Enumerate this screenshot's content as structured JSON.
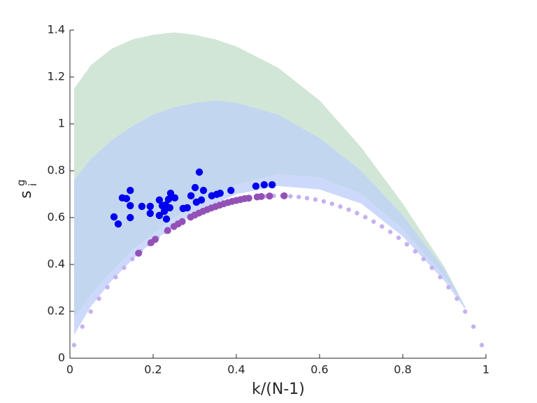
{
  "chart_data": {
    "type": "scatter",
    "xlabel": "k/(N-1)",
    "ylabel": {
      "base": "s",
      "sup": "g",
      "sub": "i"
    },
    "xlim": [
      0,
      1
    ],
    "ylim": [
      0,
      1.4
    ],
    "xticks": [
      0,
      0.2,
      0.4,
      0.6,
      0.8,
      1
    ],
    "yticks": [
      0,
      0.2,
      0.4,
      0.6,
      0.8,
      1,
      1.2,
      1.4
    ],
    "series": [
      {
        "type": "area",
        "color": "#d1e6d6",
        "x": [
          0.01,
          0.05,
          0.1,
          0.15,
          0.2,
          0.25,
          0.3,
          0.35,
          0.4,
          0.5,
          0.6,
          0.7,
          0.8,
          0.9,
          0.95
        ],
        "values": [
          1.15,
          1.25,
          1.32,
          1.36,
          1.38,
          1.39,
          1.38,
          1.36,
          1.33,
          1.24,
          1.1,
          0.9,
          0.66,
          0.39,
          0.22
        ],
        "lower": [
          0.76,
          0.85,
          0.93,
          0.99,
          1.04,
          1.07,
          1.09,
          1.1,
          1.09,
          1.04,
          0.94,
          0.8,
          0.61,
          0.38,
          0.22
        ]
      },
      {
        "type": "area",
        "color": "#c2d6ef",
        "x": [
          0.01,
          0.05,
          0.1,
          0.15,
          0.2,
          0.25,
          0.3,
          0.35,
          0.4,
          0.5,
          0.6,
          0.7,
          0.8,
          0.9,
          0.95
        ],
        "values": [
          0.76,
          0.85,
          0.93,
          0.99,
          1.04,
          1.07,
          1.09,
          1.1,
          1.09,
          1.04,
          0.94,
          0.8,
          0.61,
          0.38,
          0.22
        ],
        "lower": [
          0.17,
          0.27,
          0.37,
          0.46,
          0.53,
          0.6,
          0.65,
          0.7,
          0.74,
          0.785,
          0.77,
          0.7,
          0.55,
          0.35,
          0.22
        ]
      },
      {
        "type": "area",
        "color": "#cdd9fb",
        "x": [
          0.01,
          0.05,
          0.1,
          0.15,
          0.2,
          0.25,
          0.3,
          0.35,
          0.4,
          0.5,
          0.6,
          0.7,
          0.8,
          0.9,
          0.95
        ],
        "values": [
          0.17,
          0.27,
          0.37,
          0.46,
          0.53,
          0.6,
          0.65,
          0.7,
          0.74,
          0.785,
          0.77,
          0.7,
          0.55,
          0.35,
          0.22
        ],
        "lower": [
          0.1,
          0.22,
          0.33,
          0.42,
          0.5,
          0.56,
          0.62,
          0.66,
          0.7,
          0.735,
          0.72,
          0.66,
          0.52,
          0.33,
          0.21
        ]
      },
      {
        "type": "scatter",
        "color": "#c6b1f0",
        "size": 3.2,
        "x": [
          0.01,
          0.03,
          0.05,
          0.07,
          0.09,
          0.11,
          0.13,
          0.15,
          0.17,
          0.19,
          0.21,
          0.23,
          0.25,
          0.27,
          0.29,
          0.31,
          0.33,
          0.35,
          0.37,
          0.39,
          0.41,
          0.43,
          0.45,
          0.47,
          0.49,
          0.51,
          0.53,
          0.55,
          0.57,
          0.59,
          0.61,
          0.63,
          0.65,
          0.67,
          0.69,
          0.71,
          0.73,
          0.75,
          0.77,
          0.79,
          0.81,
          0.83,
          0.85,
          0.87,
          0.89,
          0.91,
          0.93,
          0.95,
          0.97,
          0.99
        ],
        "values": [
          0.056,
          0.135,
          0.199,
          0.254,
          0.303,
          0.346,
          0.386,
          0.423,
          0.456,
          0.486,
          0.514,
          0.539,
          0.562,
          0.583,
          0.602,
          0.619,
          0.634,
          0.647,
          0.659,
          0.669,
          0.677,
          0.683,
          0.688,
          0.691,
          0.693,
          0.693,
          0.691,
          0.688,
          0.683,
          0.677,
          0.669,
          0.659,
          0.647,
          0.634,
          0.619,
          0.602,
          0.583,
          0.562,
          0.539,
          0.514,
          0.486,
          0.456,
          0.423,
          0.386,
          0.346,
          0.303,
          0.254,
          0.199,
          0.135,
          0.056
        ]
      },
      {
        "type": "scatter",
        "color": "#9351b8",
        "size": 5,
        "x": [
          0.165,
          0.195,
          0.205,
          0.235,
          0.25,
          0.26,
          0.27,
          0.29,
          0.3,
          0.31,
          0.32,
          0.33,
          0.34,
          0.35,
          0.36,
          0.37,
          0.38,
          0.39,
          0.4,
          0.41,
          0.42,
          0.43,
          0.45,
          0.46,
          0.48,
          0.515
        ],
        "values": [
          0.448,
          0.493,
          0.507,
          0.545,
          0.562,
          0.573,
          0.583,
          0.602,
          0.611,
          0.619,
          0.627,
          0.634,
          0.641,
          0.647,
          0.653,
          0.659,
          0.664,
          0.669,
          0.673,
          0.677,
          0.681,
          0.683,
          0.688,
          0.69,
          0.692,
          0.693
        ]
      },
      {
        "type": "scatter",
        "color": "#0000ee",
        "size": 5.2,
        "x": [
          0.106,
          0.116,
          0.126,
          0.136,
          0.145,
          0.145,
          0.145,
          0.173,
          0.193,
          0.193,
          0.215,
          0.215,
          0.222,
          0.227,
          0.23,
          0.232,
          0.237,
          0.24,
          0.242,
          0.252,
          0.272,
          0.282,
          0.291,
          0.301,
          0.304,
          0.311,
          0.316,
          0.321,
          0.341,
          0.353,
          0.361,
          0.387,
          0.447,
          0.467,
          0.486
        ],
        "values": [
          0.603,
          0.573,
          0.684,
          0.681,
          0.716,
          0.651,
          0.6,
          0.648,
          0.648,
          0.618,
          0.675,
          0.609,
          0.651,
          0.627,
          0.654,
          0.594,
          0.678,
          0.642,
          0.704,
          0.684,
          0.639,
          0.642,
          0.693,
          0.728,
          0.666,
          0.794,
          0.675,
          0.716,
          0.693,
          0.699,
          0.704,
          0.716,
          0.734,
          0.74,
          0.74
        ]
      }
    ]
  }
}
